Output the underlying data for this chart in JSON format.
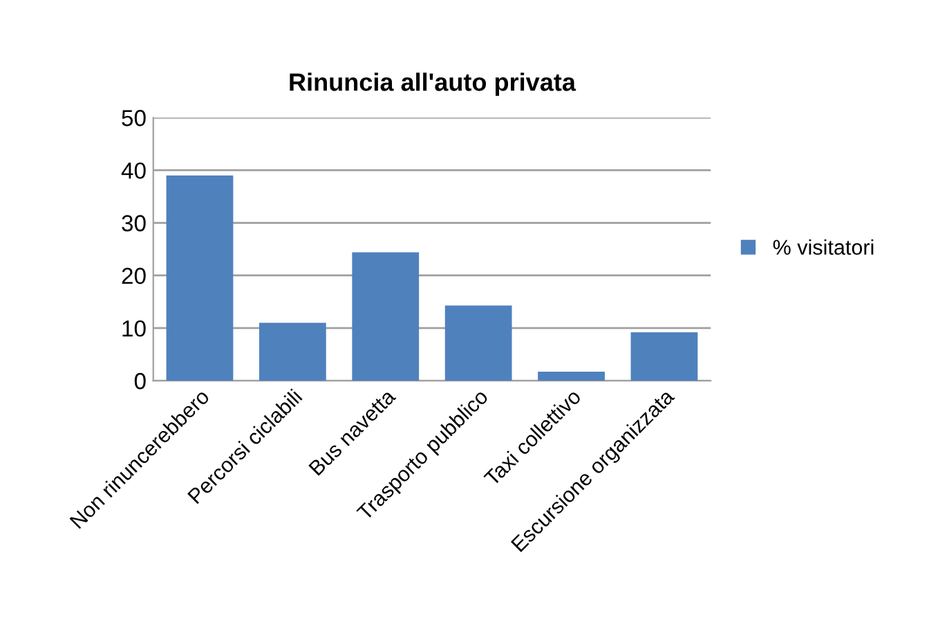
{
  "chart_data": {
    "type": "bar",
    "title": "Rinuncia all'auto privata",
    "categories": [
      "Non rinuncerebbero",
      "Percorsi ciclabili",
      "Bus navetta",
      "Trasporto pubblico",
      "Taxi collettivo",
      "Escursione organizzata"
    ],
    "series": [
      {
        "name": "% visitatori",
        "color": "#4f81bd",
        "values": [
          39.0,
          11.0,
          24.4,
          14.3,
          1.7,
          9.2
        ]
      }
    ],
    "ylim": [
      0,
      50
    ],
    "yticks": [
      0,
      10,
      20,
      30,
      40,
      50
    ],
    "grid": "y",
    "legend": "right"
  }
}
